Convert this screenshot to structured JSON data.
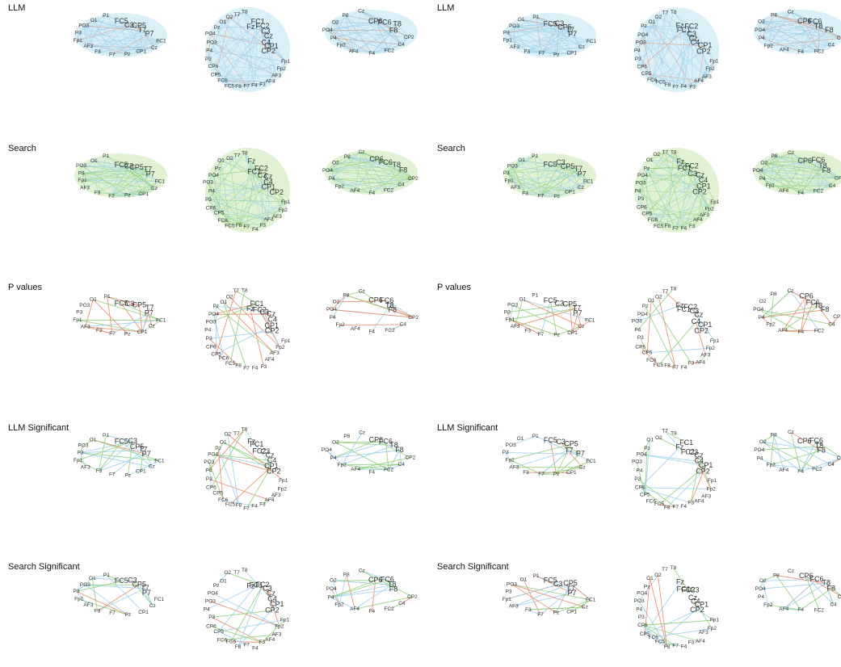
{
  "rows": [
    {
      "label": "LLM"
    },
    {
      "label": "Search"
    },
    {
      "label": "P values"
    },
    {
      "label": "LLM Significant"
    },
    {
      "label": "Search Significant"
    }
  ],
  "columns": 2,
  "views": {
    "left": {
      "large": [
        "FC5",
        "C3",
        "CP5",
        "T7",
        "P7"
      ],
      "small": [
        "FC1",
        "Cz",
        "CP1",
        "Pz",
        "F7",
        "F3",
        "AF3",
        "Fp1",
        "P3",
        "PO3",
        "O1",
        "P1"
      ],
      "edge_colors": [
        "#9bd0ea",
        "#8fcf7a",
        "#e88a6a"
      ]
    },
    "top": {
      "large": [
        "Fz",
        "FC1",
        "FC2",
        "C3",
        "Cz",
        "C4",
        "CP1",
        "CP2"
      ],
      "small": [
        "Fp1",
        "Fp2",
        "AF3",
        "AF4",
        "F3",
        "F4",
        "F7",
        "F8",
        "FC5",
        "FC6",
        "CP5",
        "CP6",
        "P3",
        "P4",
        "PO3",
        "PO4",
        "Pz",
        "O1",
        "O2",
        "T7",
        "T8"
      ],
      "edge_colors": [
        "#9bd0ea",
        "#8fcf7a",
        "#e88a6a"
      ]
    },
    "right": {
      "large": [
        "CP6",
        "FC6",
        "T8",
        "F8"
      ],
      "small": [
        "CP2",
        "C4",
        "FC2",
        "F4",
        "AF4",
        "Fp2",
        "P4",
        "PO4",
        "O2",
        "P8",
        "Cz"
      ],
      "edge_colors": [
        "#9bd0ea",
        "#8fcf7a",
        "#e88a6a"
      ]
    }
  }
}
